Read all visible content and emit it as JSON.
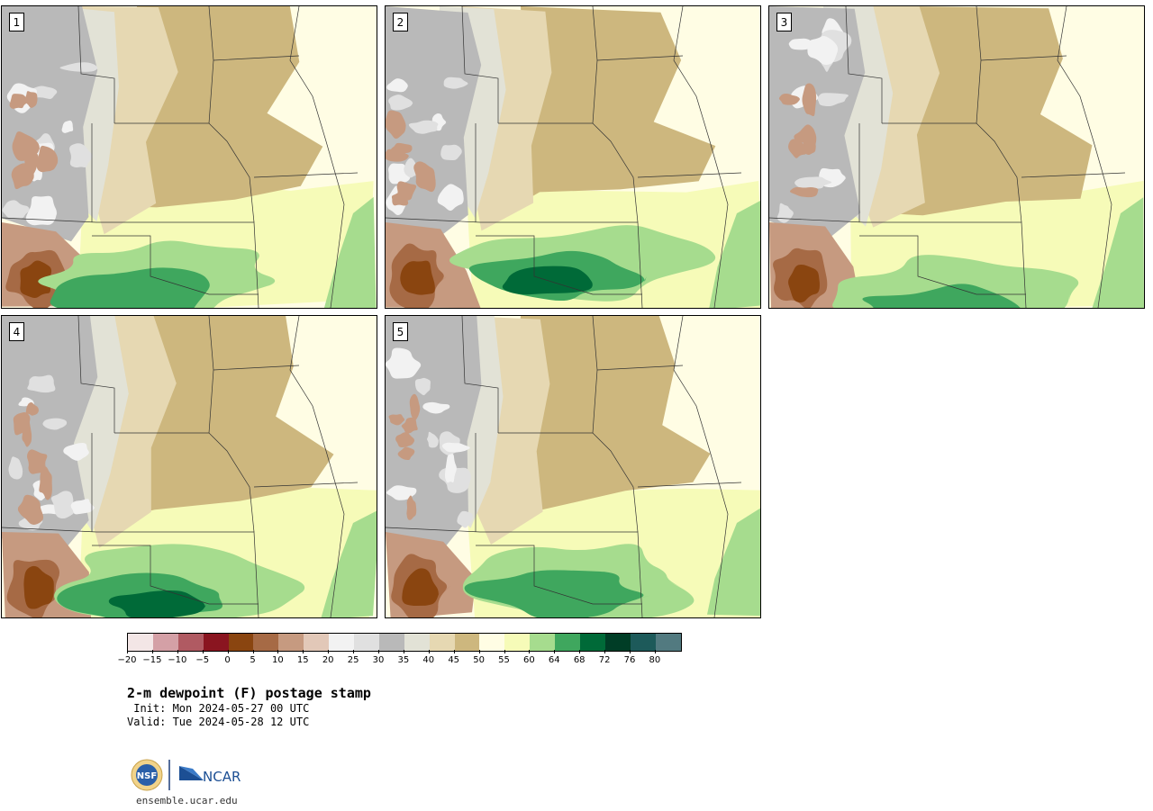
{
  "panels": [
    {
      "label": "1",
      "variant": 1
    },
    {
      "label": "2",
      "variant": 2
    },
    {
      "label": "3",
      "variant": 3
    },
    {
      "label": "4",
      "variant": 4
    },
    {
      "label": "5",
      "variant": 5
    }
  ],
  "colorbar": {
    "colors": [
      "#f3e6e6",
      "#d4a0a6",
      "#b05a62",
      "#8a1520",
      "#8a4510",
      "#a66a45",
      "#c69a80",
      "#e2c8b8",
      "#f2f2f2",
      "#e0e0e0",
      "#b9b9b9",
      "#e2e2d6",
      "#e6d8b2",
      "#cdb77e",
      "#fffde4",
      "#f6fbb8",
      "#a6dc8e",
      "#3fa75e",
      "#006a38",
      "#003d26",
      "#1d5a5a",
      "#527a80"
    ],
    "ticks": [
      "−20",
      "−15",
      "−10",
      "−5",
      "0",
      "5",
      "10",
      "15",
      "20",
      "25",
      "30",
      "35",
      "40",
      "45",
      "50",
      "55",
      "60",
      "64",
      "68",
      "72",
      "76",
      "80"
    ]
  },
  "title": "2-m dewpoint (F) postage stamp",
  "init": " Init: Mon 2024-05-27 00 UTC",
  "valid": "Valid: Tue 2024-05-28 12 UTC",
  "site": "ensemble.ucar.edu",
  "logos": {
    "nsf": "NSF",
    "ncar": "NCAR"
  }
}
